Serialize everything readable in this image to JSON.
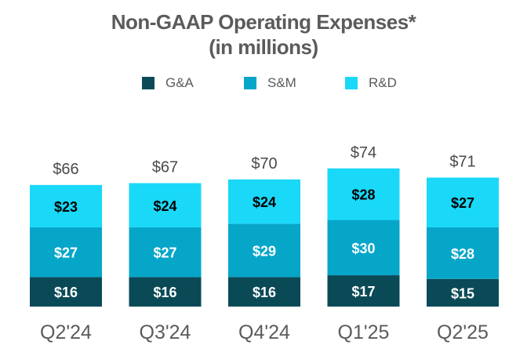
{
  "chart_data": {
    "type": "bar",
    "stacked": true,
    "title": "Non-GAAP Operating Expenses*",
    "subtitle": "(in millions)",
    "categories": [
      "Q2'24",
      "Q3'24",
      "Q4'24",
      "Q1'25",
      "Q2'25"
    ],
    "series": [
      {
        "name": "G&A",
        "values": [
          16,
          16,
          16,
          17,
          15
        ],
        "labels": [
          "$16",
          "$16",
          "$16",
          "$17",
          "$15"
        ],
        "color": "#0a4a57",
        "label_color": "#ffffff"
      },
      {
        "name": "S&M",
        "values": [
          27,
          27,
          29,
          30,
          28
        ],
        "labels": [
          "$27",
          "$27",
          "$29",
          "$30",
          "$28"
        ],
        "color": "#06a6c9",
        "label_color": "#ffffff"
      },
      {
        "name": "R&D",
        "values": [
          23,
          24,
          24,
          28,
          27
        ],
        "labels": [
          "$23",
          "$24",
          "$24",
          "$28",
          "$27"
        ],
        "color": "#1ad8f8",
        "label_color": "#000000"
      }
    ],
    "totals": [
      "$66",
      "$67",
      "$70",
      "$74",
      "$71"
    ],
    "legend_position": "top",
    "grid": false,
    "xlabel": "",
    "ylabel": ""
  }
}
